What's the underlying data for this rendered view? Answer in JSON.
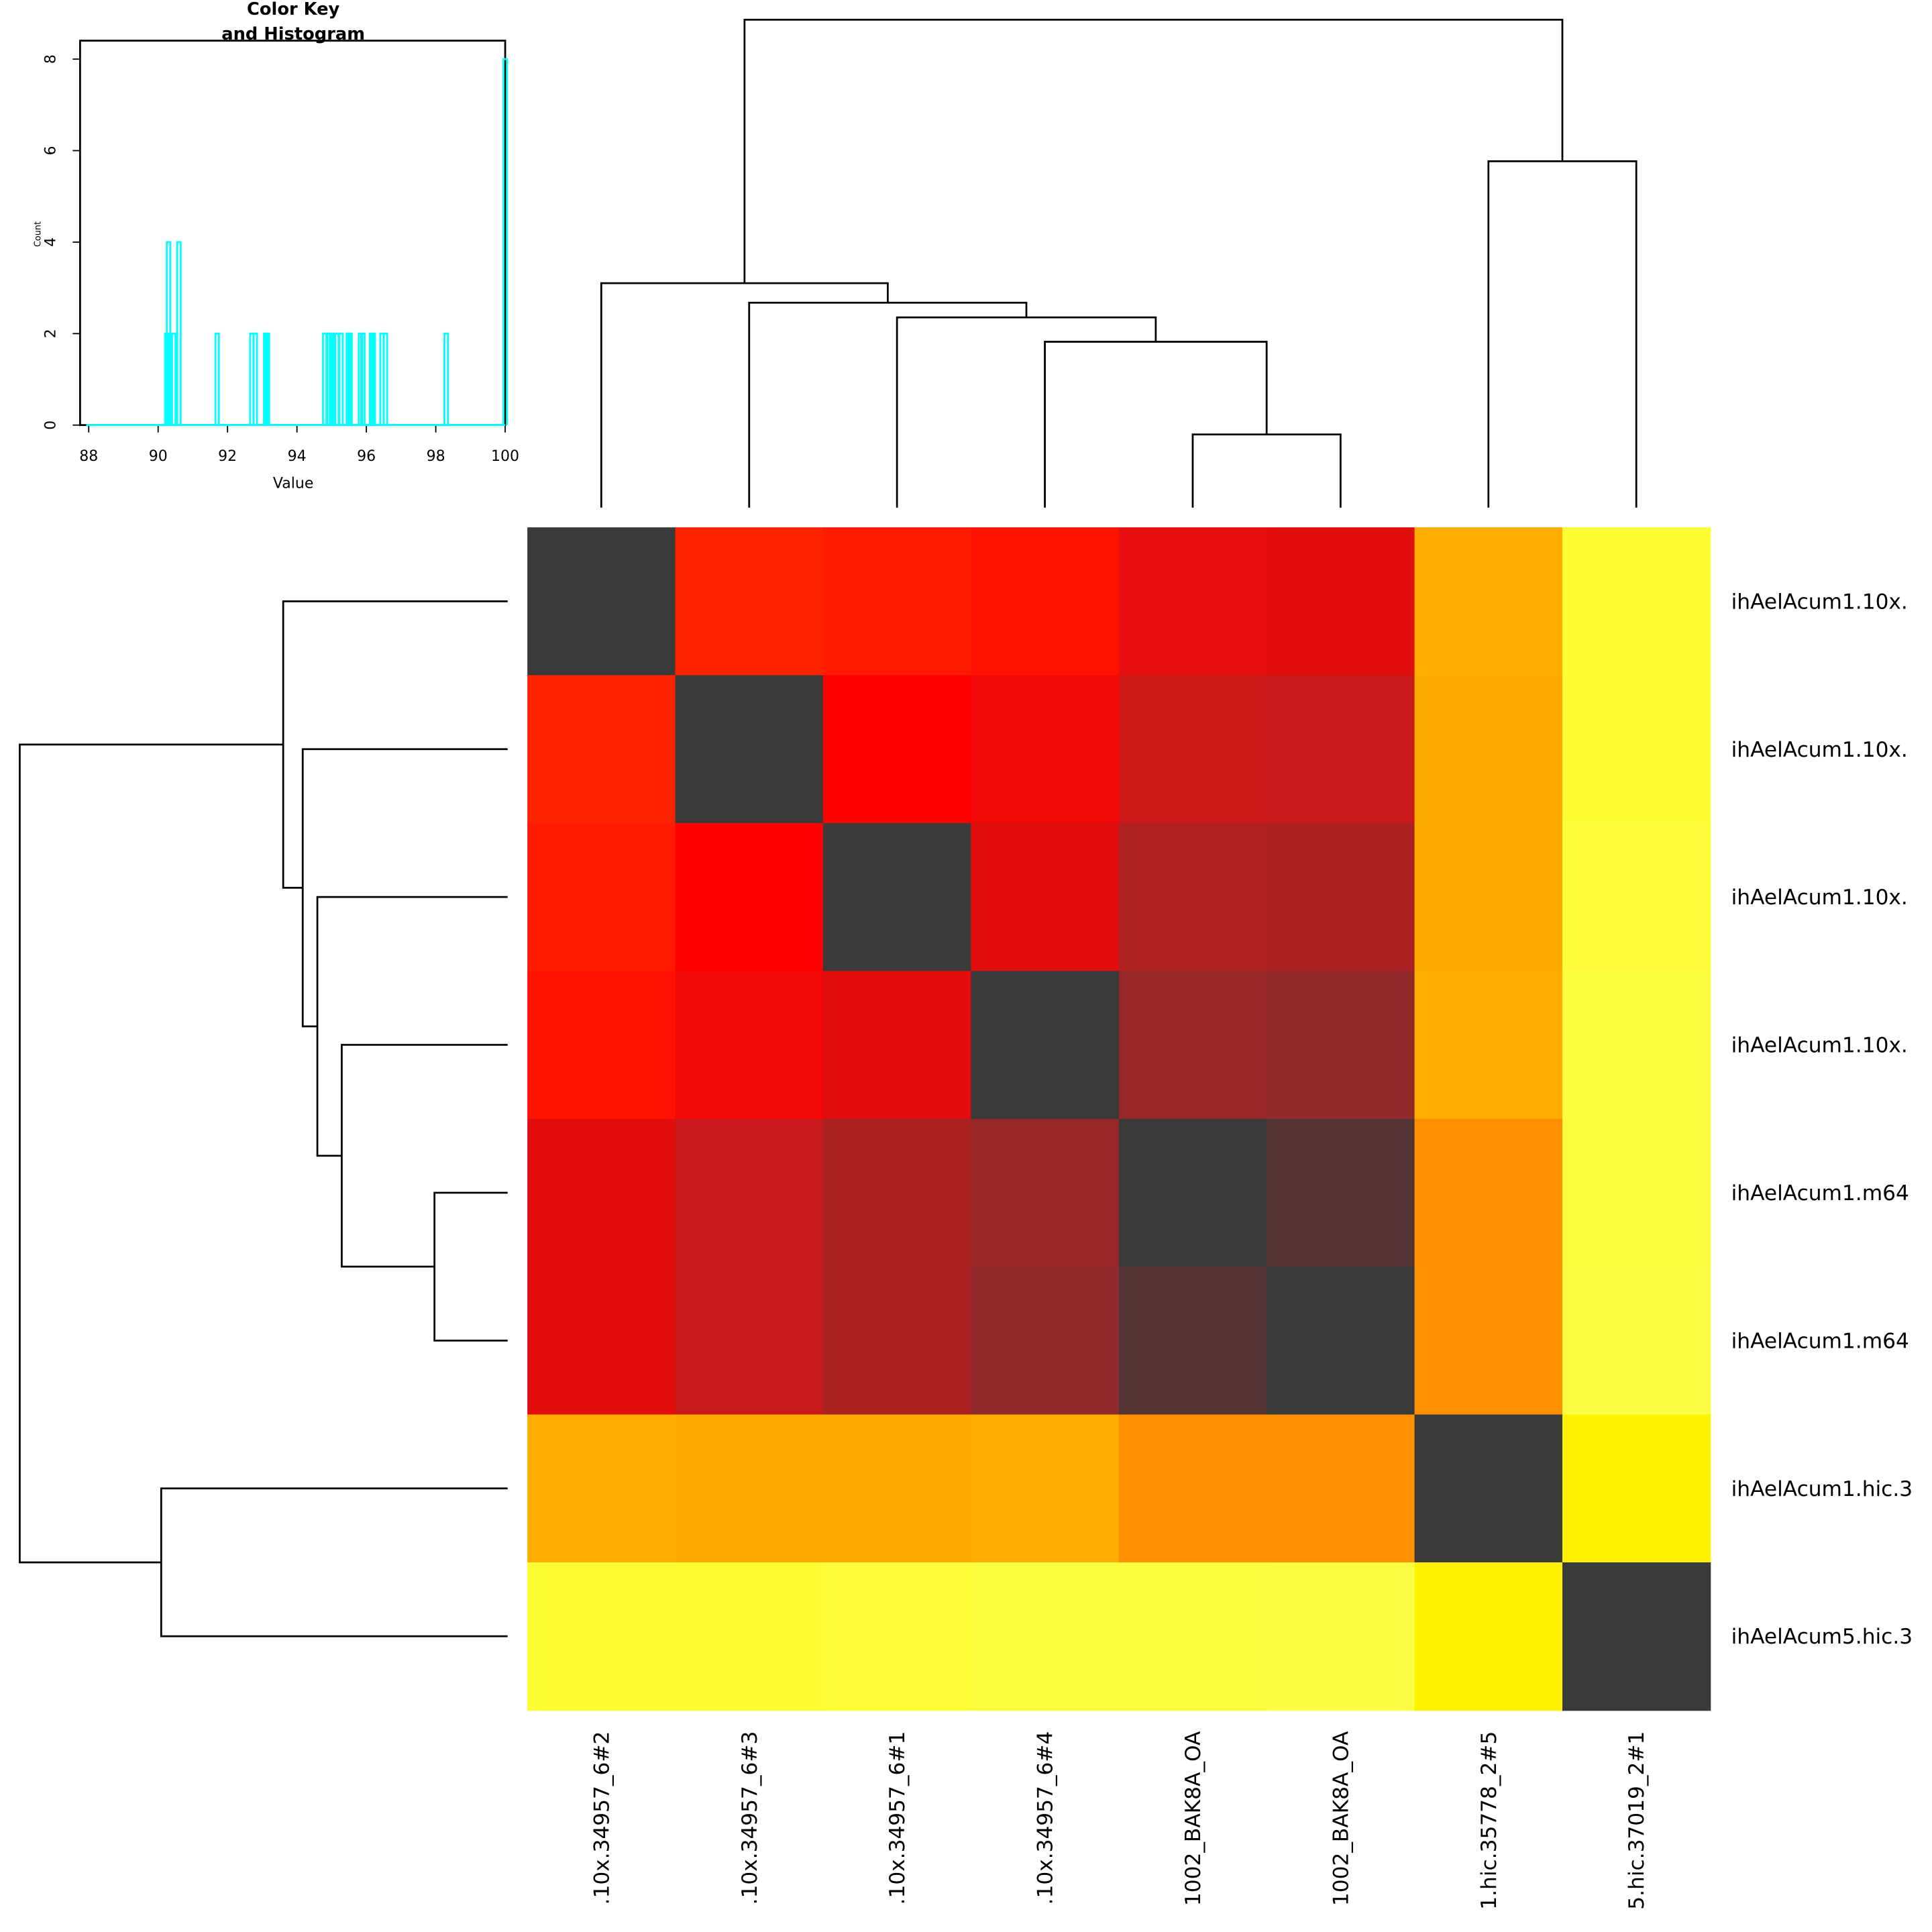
{
  "chart_data": [
    {
      "type": "heatmap",
      "title": "",
      "row_labels": [
        "ihAelAcum1.10x.",
        "ihAelAcum1.10x.",
        "ihAelAcum1.10x.",
        "ihAelAcum1.10x.",
        "ihAelAcum1.m64",
        "ihAelAcum1.m64",
        "ihAelAcum1.hic.3",
        "ihAelAcum5.hic.3"
      ],
      "col_labels": [
        ".10x.34957_6#2",
        ".10x.34957_6#3",
        ".10x.34957_6#1",
        ".10x.34957_6#4",
        "1002_BAK8A_OA",
        "1002_BAK8A_OA",
        "1.hic.35778_2#5",
        "5.hic.37019_2#1"
      ],
      "values": [
        [
          100,
          95.5,
          95.8,
          96.0,
          96.3,
          96.5,
          92.8,
          90.3
        ],
        [
          95.5,
          100,
          96.2,
          96.4,
          96.9,
          97.0,
          92.7,
          90.3
        ],
        [
          95.8,
          96.2,
          100,
          96.5,
          97.4,
          97.5,
          92.7,
          90.4
        ],
        [
          96.0,
          96.4,
          96.5,
          100,
          97.7,
          97.8,
          92.8,
          90.5
        ],
        [
          96.3,
          96.9,
          97.4,
          97.7,
          100,
          98.3,
          91.7,
          90.5
        ],
        [
          96.5,
          97.0,
          97.5,
          97.8,
          98.3,
          100,
          91.7,
          90.6
        ],
        [
          92.8,
          92.7,
          92.7,
          92.8,
          91.7,
          91.7,
          100,
          90.2
        ],
        [
          90.3,
          90.3,
          90.4,
          90.5,
          90.5,
          90.6,
          90.2,
          100
        ]
      ],
      "colors": [
        [
          "#3a3a3a",
          "#ff2200",
          "#ff1a00",
          "#ff1200",
          "#e60e0e",
          "#e20e0e",
          "#fdae00",
          "#fdfd33"
        ],
        [
          "#ff2200",
          "#3a3a3a",
          "#ff0000",
          "#f30808",
          "#cf1818",
          "#c81a1a",
          "#fdaa00",
          "#fdfd33"
        ],
        [
          "#ff1a00",
          "#ff0000",
          "#3a3a3a",
          "#e20e0e",
          "#b02222",
          "#ab2222",
          "#fdaa00",
          "#fdfd3a"
        ],
        [
          "#ff1200",
          "#f30808",
          "#e20e0e",
          "#3a3a3a",
          "#982828",
          "#902a2a",
          "#fdae00",
          "#fdfd40"
        ],
        [
          "#e20e0e",
          "#c81a1a",
          "#ab2222",
          "#982828",
          "#3a3a3a",
          "#543434",
          "#ff9000",
          "#fdfd40"
        ],
        [
          "#e20e0e",
          "#c81a1a",
          "#ab2222",
          "#902a2a",
          "#543434",
          "#3a3a3a",
          "#ff9000",
          "#fdfd45"
        ],
        [
          "#fdae00",
          "#fdaa00",
          "#fdaa00",
          "#fdae00",
          "#ff9000",
          "#ff9000",
          "#3a3a3a",
          "#fff200"
        ],
        [
          "#fdfd33",
          "#fdfd33",
          "#fdfd3a",
          "#fdfd40",
          "#fdfd40",
          "#fdfd45",
          "#fff200",
          "#3a3a3a"
        ]
      ],
      "dendrogram_merges": [
        {
          "left": 4,
          "right": 5,
          "height": 0.15
        },
        {
          "left": 3,
          "right": "m0",
          "height": 0.34
        },
        {
          "left": 2,
          "right": "m1",
          "height": 0.39
        },
        {
          "left": 1,
          "right": "m2",
          "height": 0.42
        },
        {
          "left": 0,
          "right": "m3",
          "height": 0.46
        },
        {
          "left": 6,
          "right": 7,
          "height": 0.71
        },
        {
          "left": "m4",
          "right": "m5",
          "height": 1.0
        }
      ]
    },
    {
      "type": "histogram",
      "title": "Color Key\nand Histogram",
      "title_lines": [
        "Color Key",
        "and Histogram"
      ],
      "xlabel": "Value",
      "ylabel": "Count",
      "xlim": [
        88,
        100
      ],
      "ylim": [
        0,
        8
      ],
      "xticks": [
        "88",
        "90",
        "92",
        "94",
        "96",
        "98",
        "100"
      ],
      "yticks": [
        "0",
        "2",
        "4",
        "6",
        "8"
      ],
      "line_color": "#00ffff",
      "bins": [
        {
          "x": 90.25,
          "count": 2
        },
        {
          "x": 90.3,
          "count": 4
        },
        {
          "x": 90.45,
          "count": 2
        },
        {
          "x": 90.6,
          "count": 4
        },
        {
          "x": 91.7,
          "count": 2
        },
        {
          "x": 92.7,
          "count": 2
        },
        {
          "x": 92.8,
          "count": 2
        },
        {
          "x": 93.1,
          "count": 2
        },
        {
          "x": 93.15,
          "count": 2
        },
        {
          "x": 94.8,
          "count": 2
        },
        {
          "x": 94.93,
          "count": 2
        },
        {
          "x": 95.0,
          "count": 2
        },
        {
          "x": 95.05,
          "count": 2
        },
        {
          "x": 95.15,
          "count": 2
        },
        {
          "x": 95.27,
          "count": 2
        },
        {
          "x": 95.48,
          "count": 2
        },
        {
          "x": 95.53,
          "count": 2
        },
        {
          "x": 95.83,
          "count": 2
        },
        {
          "x": 95.9,
          "count": 2
        },
        {
          "x": 96.15,
          "count": 2
        },
        {
          "x": 96.2,
          "count": 2
        },
        {
          "x": 96.45,
          "count": 2
        },
        {
          "x": 96.55,
          "count": 2
        },
        {
          "x": 98.3,
          "count": 2
        },
        {
          "x": 100,
          "count": 8
        }
      ]
    }
  ]
}
